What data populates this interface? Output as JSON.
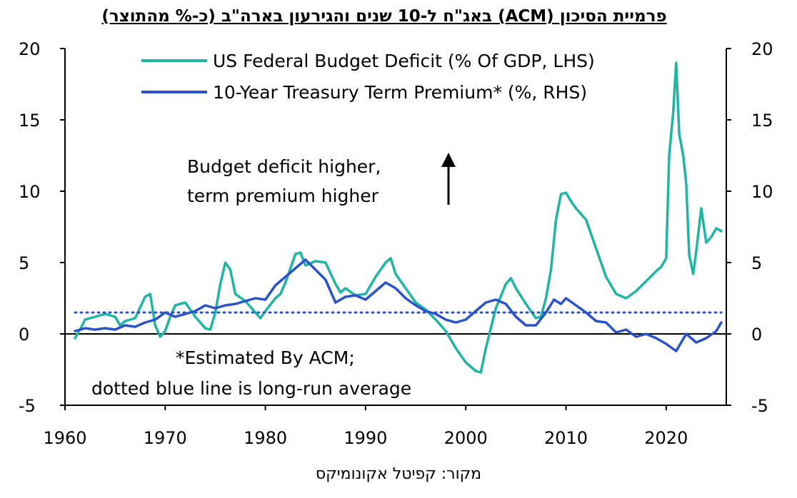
{
  "title": "פרמיית הסיכון (ACM) באג\"ח ל-10 שנים והגירעון בארה\"ב (כ-% מהתוצר)",
  "source": "מקור: קפיטל אקונומיקס",
  "colors": {
    "deficit": "#1fb5a5",
    "term_premium": "#2a52c9",
    "average": "#2a52c9",
    "axis": "#000000"
  },
  "chart_data": {
    "type": "line",
    "title": "פרמיית הסיכון (ACM) באג\"ח ל-10 שנים והגירעון בארה\"ב (כ-% מהתוצר)",
    "xlim": [
      1960,
      2026
    ],
    "ylim": [
      -5,
      20
    ],
    "x_ticks": [
      1960,
      1970,
      1980,
      1990,
      2000,
      2010,
      2020
    ],
    "x_tick_labels": [
      "1960",
      "1970",
      "1980",
      "1990",
      "2000",
      "2010",
      "2020"
    ],
    "y_ticks": [
      -5,
      0,
      5,
      10,
      15,
      20
    ],
    "y_tick_labels_left": [
      "-5",
      "0",
      "5",
      "10",
      "15",
      "20"
    ],
    "y_tick_labels_right": [
      "-5",
      "0",
      "5",
      "10",
      "15",
      "20"
    ],
    "grid": false,
    "legend_position": "top",
    "series": [
      {
        "name": "US Federal Budget Deficit (% Of GDP, LHS)",
        "axis": "left",
        "x": [
          1961.0,
          1961.5,
          1962.0,
          1963.0,
          1964.0,
          1965.0,
          1965.5,
          1966.0,
          1967.0,
          1968.0,
          1968.5,
          1969.0,
          1969.5,
          1970.0,
          1970.5,
          1971.0,
          1972.0,
          1973.0,
          1974.0,
          1974.5,
          1975.0,
          1975.5,
          1976.0,
          1976.5,
          1977.0,
          1978.0,
          1979.0,
          1979.5,
          1980.0,
          1981.0,
          1981.5,
          1982.0,
          1983.0,
          1983.5,
          1984.0,
          1985.0,
          1986.0,
          1987.0,
          1987.5,
          1988.0,
          1989.0,
          1990.0,
          1991.0,
          1992.0,
          1992.5,
          1993.0,
          1994.0,
          1995.0,
          1996.0,
          1997.0,
          1998.0,
          1999.0,
          2000.0,
          2001.0,
          2001.5,
          2002.0,
          2003.0,
          2004.0,
          2004.5,
          2005.0,
          2006.0,
          2007.0,
          2007.5,
          2008.0,
          2008.5,
          2009.0,
          2009.5,
          2010.0,
          2010.5,
          2011.0,
          2012.0,
          2013.0,
          2014.0,
          2015.0,
          2016.0,
          2017.0,
          2018.0,
          2019.0,
          2019.5,
          2020.0,
          2020.3,
          2020.7,
          2021.0,
          2021.3,
          2021.7,
          2022.0,
          2022.3,
          2022.7,
          2023.0,
          2023.5,
          2024.0,
          2024.5,
          2025.0,
          2025.5
        ],
        "values": [
          -0.3,
          0.3,
          1.0,
          1.2,
          1.4,
          1.2,
          0.6,
          0.9,
          1.1,
          2.6,
          2.8,
          0.6,
          -0.2,
          0.2,
          1.2,
          2.0,
          2.2,
          1.2,
          0.4,
          0.3,
          1.5,
          3.5,
          5.0,
          4.5,
          2.8,
          2.3,
          1.5,
          1.1,
          1.6,
          2.5,
          2.8,
          3.6,
          5.6,
          5.7,
          4.8,
          5.1,
          5.0,
          3.5,
          2.9,
          3.2,
          2.7,
          2.8,
          4.0,
          5.0,
          5.3,
          4.2,
          3.2,
          2.2,
          1.7,
          1.0,
          0.2,
          -1.0,
          -2.0,
          -2.6,
          -2.7,
          -1.0,
          1.8,
          3.5,
          3.9,
          3.2,
          2.1,
          1.1,
          1.2,
          2.5,
          4.5,
          8.0,
          9.8,
          9.9,
          9.3,
          8.8,
          8.0,
          6.0,
          4.0,
          2.8,
          2.5,
          3.0,
          3.7,
          4.4,
          4.7,
          5.3,
          12.5,
          15.5,
          19.0,
          14.0,
          12.5,
          10.5,
          5.5,
          4.2,
          5.8,
          8.8,
          6.4,
          6.8,
          7.4,
          7.2
        ]
      },
      {
        "name": "10-Year Treasury Term Premium* (%, RHS)",
        "axis": "right",
        "x": [
          1961.0,
          1962.0,
          1963.0,
          1964.0,
          1965.0,
          1966.0,
          1967.0,
          1968.0,
          1969.0,
          1970.0,
          1971.0,
          1972.0,
          1973.0,
          1974.0,
          1975.0,
          1976.0,
          1977.0,
          1978.0,
          1979.0,
          1980.0,
          1981.0,
          1982.0,
          1983.0,
          1984.0,
          1985.0,
          1986.0,
          1987.0,
          1988.0,
          1989.0,
          1990.0,
          1991.0,
          1992.0,
          1993.0,
          1994.0,
          1995.0,
          1996.0,
          1997.0,
          1998.0,
          1999.0,
          2000.0,
          2001.0,
          2002.0,
          2003.0,
          2004.0,
          2005.0,
          2006.0,
          2007.0,
          2008.0,
          2008.8,
          2009.5,
          2010.0,
          2011.0,
          2012.0,
          2013.0,
          2014.0,
          2015.0,
          2016.0,
          2017.0,
          2018.0,
          2019.0,
          2020.0,
          2021.0,
          2022.0,
          2023.0,
          2024.0,
          2025.0,
          2025.5
        ],
        "values": [
          0.2,
          0.4,
          0.3,
          0.4,
          0.3,
          0.6,
          0.5,
          0.8,
          1.0,
          1.5,
          1.2,
          1.4,
          1.6,
          2.0,
          1.8,
          2.0,
          2.1,
          2.3,
          2.5,
          2.4,
          3.4,
          4.0,
          4.6,
          5.2,
          4.5,
          3.8,
          2.2,
          2.6,
          2.7,
          2.4,
          3.0,
          3.6,
          3.2,
          2.5,
          2.0,
          1.6,
          1.4,
          1.0,
          0.8,
          1.0,
          1.6,
          2.2,
          2.4,
          2.1,
          1.2,
          0.6,
          0.6,
          1.5,
          2.4,
          2.1,
          2.5,
          2.0,
          1.5,
          0.9,
          0.8,
          0.1,
          0.3,
          -0.2,
          0.0,
          -0.3,
          -0.7,
          -1.2,
          0.0,
          -0.6,
          -0.3,
          0.2,
          0.8
        ]
      },
      {
        "name": "",
        "axis": "right",
        "style": "dotted",
        "x": [
          1961.0,
          2025.5
        ],
        "values": [
          1.5,
          1.5
        ]
      }
    ],
    "annotations": [
      {
        "lines": [
          "Budget deficit higher,",
          "term premium higher"
        ],
        "arrow": "up"
      },
      {
        "lines": [
          "*Estimated  By ACM;",
          "dotted blue  line is long-run average"
        ]
      }
    ]
  }
}
